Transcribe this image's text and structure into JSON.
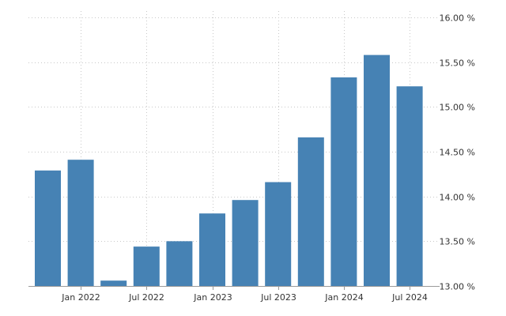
{
  "chart_data": {
    "type": "bar",
    "x": [
      "2021-10",
      "2022-01",
      "2022-04",
      "2022-07",
      "2022-10",
      "2023-01",
      "2023-04",
      "2023-07",
      "2023-10",
      "2024-01",
      "2024-04",
      "2024-07"
    ],
    "values": [
      14.29,
      14.41,
      13.06,
      13.44,
      13.5,
      13.81,
      13.96,
      14.16,
      14.66,
      15.33,
      15.58,
      15.23
    ],
    "ylim": [
      13.0,
      16.0
    ],
    "y_ticks": [
      "13.00 %",
      "13.50 %",
      "14.00 %",
      "14.50 %",
      "15.00 %",
      "15.50 %",
      "16.00 %"
    ],
    "x_ticks": [
      {
        "label": "Jan 2022",
        "at": "2022-01"
      },
      {
        "label": "Jul 2022",
        "at": "2022-07"
      },
      {
        "label": "Jan 2023",
        "at": "2023-01"
      },
      {
        "label": "Jul 2023",
        "at": "2023-07"
      },
      {
        "label": "Jan 2024",
        "at": "2024-01"
      },
      {
        "label": "Jul 2024",
        "at": "2024-07"
      }
    ],
    "y_axis_position": "right",
    "grid": true,
    "legend": false
  },
  "colors": {
    "bar": "#4682b4"
  }
}
